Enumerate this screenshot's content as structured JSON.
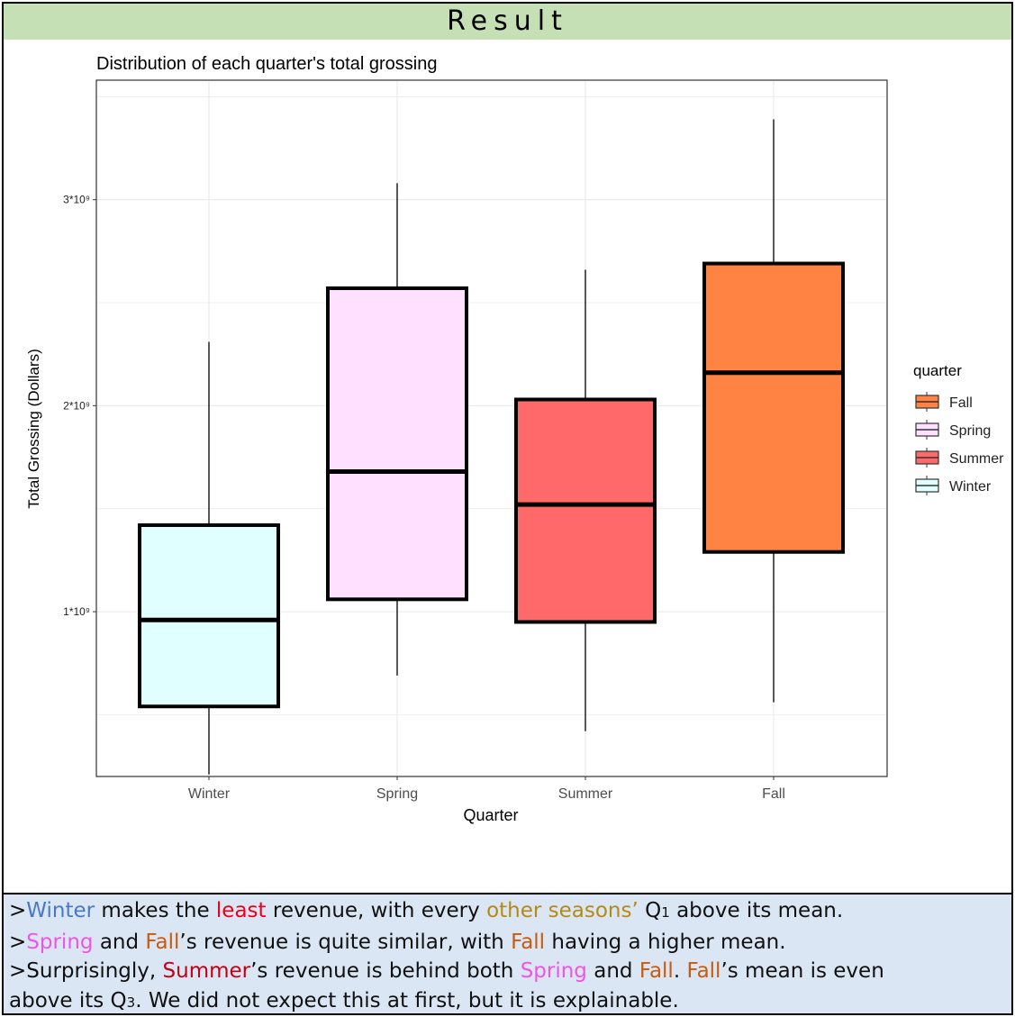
{
  "header": {
    "title": "Result"
  },
  "chart_data": {
    "type": "box",
    "title": "Distribution of each quarter's total grossing",
    "xlabel": "Quarter",
    "ylabel": "Total Grossing (Dollars)",
    "categories": [
      "Winter",
      "Spring",
      "Summer",
      "Fall"
    ],
    "y_ticks": [
      {
        "value": 1000000000,
        "label": "1*10⁹"
      },
      {
        "value": 2000000000,
        "label": "2*10⁹"
      },
      {
        "value": 3000000000,
        "label": "3*10⁹"
      }
    ],
    "ylim": [
      200000000,
      3580000000
    ],
    "grid": true,
    "boxes": [
      {
        "category": "Winter",
        "min": 210000000,
        "q1": 540000000,
        "median": 960000000,
        "q3": 1420000000,
        "max": 2310000000,
        "color": "#e0ffff"
      },
      {
        "category": "Spring",
        "min": 690000000,
        "q1": 1060000000,
        "median": 1680000000,
        "q3": 2570000000,
        "max": 3080000000,
        "color": "#ffe0ff"
      },
      {
        "category": "Summer",
        "min": 420000000,
        "q1": 950000000,
        "median": 1520000000,
        "q3": 2030000000,
        "max": 2660000000,
        "color": "#ff6969"
      },
      {
        "category": "Fall",
        "min": 560000000,
        "q1": 1290000000,
        "median": 2160000000,
        "q3": 2690000000,
        "max": 3390000000,
        "color": "#ff8343"
      }
    ],
    "legend": {
      "title": "quarter",
      "placement": "right",
      "entries": [
        {
          "label": "Fall",
          "color": "#ff8343"
        },
        {
          "label": "Spring",
          "color": "#ffe0ff"
        },
        {
          "label": "Summer",
          "color": "#ff6969"
        },
        {
          "label": "Winter",
          "color": "#e0ffff"
        }
      ]
    }
  },
  "notes": {
    "line1": {
      "prefix": ">",
      "winter": "Winter",
      "t1": " makes the ",
      "least": "least",
      "t2": " revenue, with every ",
      "other": "other seasons’",
      "t3": " Q",
      "sub": "1",
      "t4": " above its mean."
    },
    "line2": {
      "prefix": ">",
      "spring": "Spring",
      "t1": " and ",
      "fall": "Fall",
      "t2": "’s revenue is quite similar, with ",
      "fall2": "Fall",
      "t3": " having a higher mean."
    },
    "line3": {
      "prefix": ">Surprisingly, ",
      "summer": "Summer",
      "t1": "’s revenue is behind both ",
      "spring": "Spring",
      "t2": " and ",
      "fall": "Fall",
      "t3": ". ",
      "fall2": "Fall",
      "t4": "’s mean is even"
    },
    "line4": {
      "t1": "above its Q",
      "sub": "3",
      "t2": ". We did not expect this at first, but it is explainable."
    }
  }
}
